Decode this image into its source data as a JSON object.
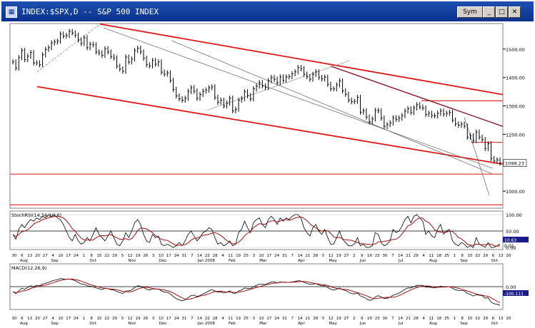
{
  "window": {
    "title": "INDEX:$SPX,D -- S&P 500 INDEX",
    "symbol_button": "Sym",
    "icon": "app-icon"
  },
  "panels": {
    "price": {
      "last_value": "1099.23"
    },
    "stoch": {
      "label": "StochRSI(14,34,1)(,6)",
      "readout_1": "10.63",
      "readout_2": "0.03"
    },
    "macd": {
      "label": "MACD(12,26,9)",
      "readout_1": "0.00",
      "readout_2": "-100.111"
    }
  },
  "chart_data": [
    {
      "type": "line",
      "title": "INDEX:$SPX,D -- S&P 500 INDEX",
      "ylim": [
        940,
        1590
      ],
      "y_ticks": [
        1000,
        1100,
        1200,
        1300,
        1400,
        1500
      ],
      "y_tick_labels": [
        "1000.00",
        "1100.00",
        "1200.00",
        "1300.00",
        "1400.00",
        "1500.00"
      ],
      "date_labels": [
        "30",
        "6",
        "13",
        "20",
        "27",
        "4",
        "10",
        "17",
        "24",
        "1",
        "8",
        "15",
        "22",
        "29",
        "5",
        "12",
        "19",
        "26",
        "3",
        "10",
        "17",
        "24",
        "31",
        "7",
        "14",
        "22",
        "28",
        "4",
        "11",
        "19",
        "25",
        "3",
        "10",
        "17",
        "24",
        "31",
        "7",
        "14",
        "21",
        "28",
        "5",
        "12",
        "19",
        "27",
        "2",
        "9",
        "16",
        "23",
        "30",
        "7",
        "14",
        "21",
        "28",
        "4",
        "11",
        "18",
        "25",
        "1",
        "8",
        "15",
        "22",
        "29",
        "6",
        "13",
        "20"
      ],
      "month_labels": [
        "Aug",
        "Sep",
        "Oct",
        "Nov",
        "Dec",
        "Jan 2008",
        "Feb",
        "Mar",
        "Apr",
        "May",
        "Jun",
        "Jul",
        "Aug",
        "Sep",
        "Oct"
      ],
      "series": [
        {
          "values": [
            1455,
            1433,
            1470,
            1495,
            1463,
            1475,
            1488,
            1451,
            1452,
            1445,
            1480,
            1499,
            1505,
            1522,
            1525,
            1528,
            1553,
            1546,
            1548,
            1562,
            1557,
            1549,
            1532,
            1520,
            1540,
            1505,
            1517,
            1515,
            1490,
            1487,
            1478,
            1501,
            1490,
            1474,
            1469,
            1440,
            1430,
            1422,
            1472,
            1455,
            1465,
            1495,
            1503,
            1490,
            1468,
            1445,
            1441,
            1460,
            1447,
            1455,
            1419,
            1412,
            1416,
            1390,
            1358,
            1335,
            1325,
            1320,
            1327,
            1351,
            1364,
            1352,
            1327,
            1340,
            1352,
            1356,
            1364,
            1367,
            1330,
            1313,
            1320,
            1300,
            1310,
            1327,
            1283,
            1288,
            1320,
            1326,
            1350,
            1336,
            1325,
            1360,
            1370,
            1382,
            1371,
            1365,
            1389,
            1400,
            1394,
            1382,
            1402,
            1390,
            1402,
            1403,
            1413,
            1420,
            1435,
            1431,
            1412,
            1403,
            1394,
            1411,
            1420,
            1400,
            1395,
            1401,
            1376,
            1360,
            1360,
            1374,
            1388,
            1353,
            1341,
            1320,
            1315,
            1316,
            1330,
            1278,
            1283,
            1261,
            1244,
            1254,
            1284,
            1283,
            1257,
            1228,
            1234,
            1240,
            1258,
            1253,
            1257,
            1266,
            1282,
            1290,
            1277,
            1293,
            1304,
            1296,
            1293,
            1270,
            1274,
            1266,
            1265,
            1274,
            1282,
            1271,
            1274,
            1277,
            1250,
            1237,
            1232,
            1236,
            1229,
            1190,
            1195,
            1178,
            1208,
            1190,
            1182,
            1150,
            1167,
            1114,
            1106,
            1110,
            1099
          ],
          "open_high_low_close": false
        }
      ],
      "annotations": "trend channel lines (red), support/resistance horizontals (red), trendlines (black/grey)"
    },
    {
      "type": "line",
      "title": "StochRSI(14,34,1)(,6)",
      "ylim": [
        0,
        100
      ],
      "y_tick_labels": [
        "100.00",
        "50.00",
        "0.00"
      ],
      "series": [
        {
          "values": [
            40,
            25,
            55,
            70,
            60,
            75,
            85,
            80,
            90,
            85,
            95,
            90,
            100,
            95,
            100,
            90,
            85,
            70,
            50,
            30,
            20,
            40,
            20,
            10,
            15,
            30,
            20,
            40,
            60,
            40,
            30,
            20,
            35,
            50,
            30,
            10,
            5,
            20,
            45,
            30,
            50,
            75,
            85,
            70,
            40,
            20,
            15,
            40,
            30,
            35,
            10,
            5,
            10,
            5,
            0,
            5,
            15,
            5,
            20,
            40,
            50,
            35,
            20,
            30,
            45,
            50,
            60,
            55,
            30,
            10,
            15,
            5,
            10,
            20,
            5,
            10,
            45,
            55,
            80,
            60,
            45,
            75,
            85,
            90,
            70,
            60,
            85,
            95,
            85,
            70,
            90,
            80,
            90,
            85,
            95,
            100,
            100,
            90,
            60,
            45,
            35,
            60,
            70,
            50,
            40,
            55,
            30,
            10,
            10,
            30,
            50,
            25,
            15,
            5,
            5,
            10,
            30,
            5,
            10,
            0,
            0,
            5,
            45,
            40,
            15,
            5,
            10,
            20,
            55,
            45,
            50,
            65,
            85,
            95,
            75,
            95,
            100,
            90,
            80,
            40,
            50,
            35,
            30,
            55,
            70,
            40,
            50,
            55,
            20,
            10,
            5,
            15,
            10,
            0,
            5,
            0,
            30,
            10,
            5,
            0,
            15,
            0,
            0,
            5,
            10
          ]
        }
      ]
    },
    {
      "type": "line",
      "title": "MACD(12,26,9)",
      "y_tick_labels": [
        "0.00"
      ],
      "series": [
        {
          "values": [
            -12,
            -16,
            -10,
            -4,
            -6,
            -2,
            2,
            0,
            3,
            2,
            6,
            8,
            10,
            13,
            15,
            16,
            19,
            18,
            17,
            18,
            16,
            14,
            10,
            6,
            6,
            2,
            1,
            0,
            -3,
            -5,
            -7,
            -4,
            -5,
            -7,
            -8,
            -11,
            -14,
            -16,
            -10,
            -10,
            -8,
            -2,
            2,
            1,
            -2,
            -6,
            -8,
            -5,
            -6,
            -5,
            -10,
            -13,
            -13,
            -17,
            -23,
            -28,
            -31,
            -33,
            -31,
            -26,
            -21,
            -20,
            -23,
            -21,
            -17,
            -14,
            -10,
            -7,
            -10,
            -13,
            -12,
            -15,
            -13,
            -10,
            -15,
            -16,
            -10,
            -8,
            -3,
            -4,
            -5,
            0,
            3,
            6,
            6,
            5,
            8,
            11,
            11,
            9,
            11,
            10,
            10,
            10,
            11,
            12,
            14,
            13,
            10,
            8,
            5,
            6,
            7,
            4,
            2,
            2,
            -2,
            -6,
            -8,
            -6,
            -3,
            -7,
            -9,
            -13,
            -16,
            -17,
            -15,
            -22,
            -24,
            -28,
            -32,
            -31,
            -24,
            -21,
            -24,
            -28,
            -27,
            -25,
            -20,
            -18,
            -15,
            -11,
            -6,
            -3,
            -3,
            0,
            3,
            3,
            3,
            -1,
            -1,
            -2,
            -3,
            -1,
            1,
            0,
            0,
            0,
            -4,
            -7,
            -9,
            -9,
            -10,
            -16,
            -18,
            -22,
            -19,
            -20,
            -21,
            -27,
            -26,
            -36,
            -40,
            -41,
            -44
          ]
        }
      ]
    }
  ]
}
